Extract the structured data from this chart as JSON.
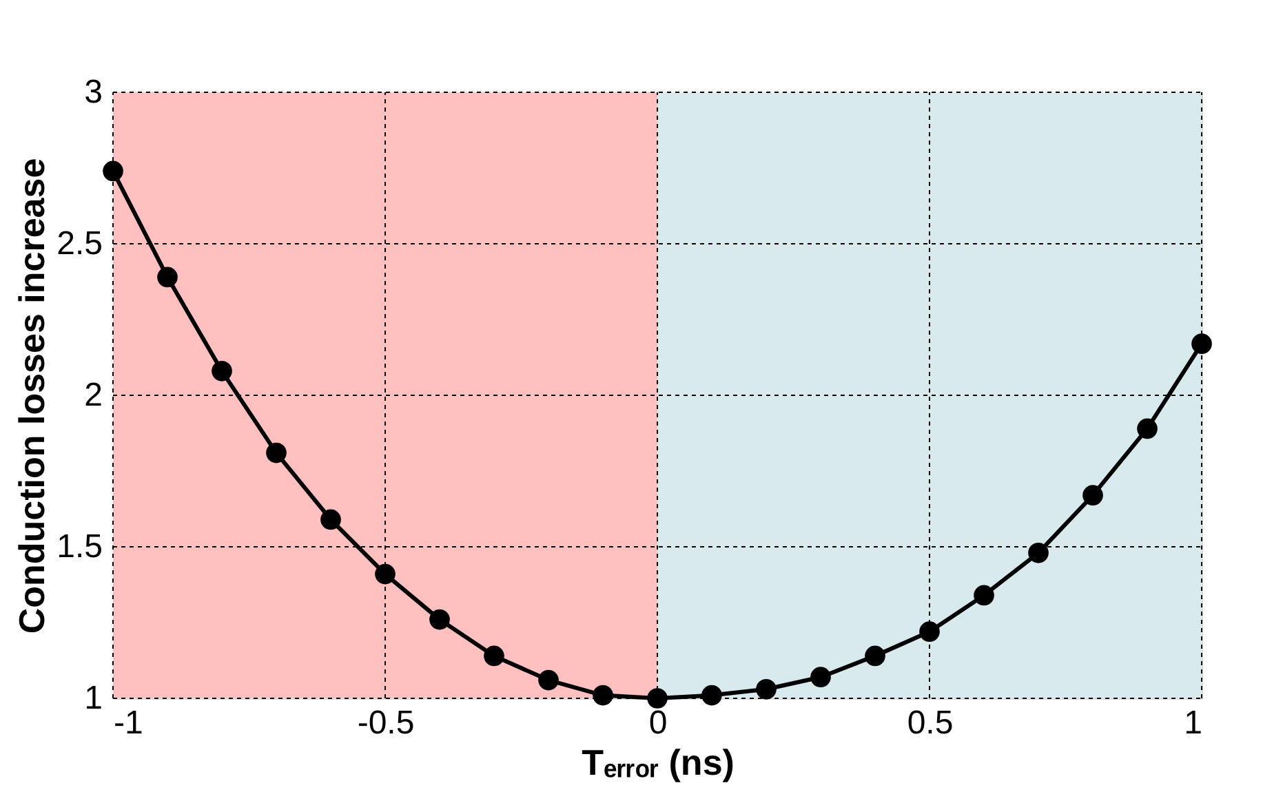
{
  "chart_data": {
    "type": "line",
    "xlabel": "Tₑᵣᵣₒᵣ (ns)",
    "ylabel": "Conduction losses increase",
    "x": [
      -1,
      -0.9,
      -0.8,
      -0.7,
      -0.6,
      -0.5,
      -0.4,
      -0.3,
      -0.2,
      -0.1,
      0,
      0.1,
      0.2,
      0.3,
      0.4,
      0.5,
      0.6,
      0.7,
      0.8,
      0.9,
      1
    ],
    "series": [
      {
        "color": "#000000",
        "values": [
          2.74,
          2.39,
          2.08,
          1.81,
          1.59,
          1.41,
          1.26,
          1.14,
          1.06,
          1.01,
          1.0,
          1.01,
          1.03,
          1.07,
          1.14,
          1.22,
          1.34,
          1.48,
          1.67,
          1.89,
          2.17
        ]
      }
    ],
    "xlim": [
      -1,
      1
    ],
    "xticks": [
      -1,
      -0.5,
      0,
      0.5,
      1
    ],
    "ylim": [
      1,
      3
    ],
    "yticks": [
      1,
      1.5,
      2,
      2.5,
      3
    ],
    "bands": [
      {
        "axis": "x",
        "from": -1,
        "to": 0,
        "color": "#ffc0c0"
      },
      {
        "axis": "x",
        "from": 0,
        "to": 1,
        "color": "#d9eaee"
      }
    ],
    "grid": true,
    "marker": "circle",
    "line_style": "solid"
  }
}
